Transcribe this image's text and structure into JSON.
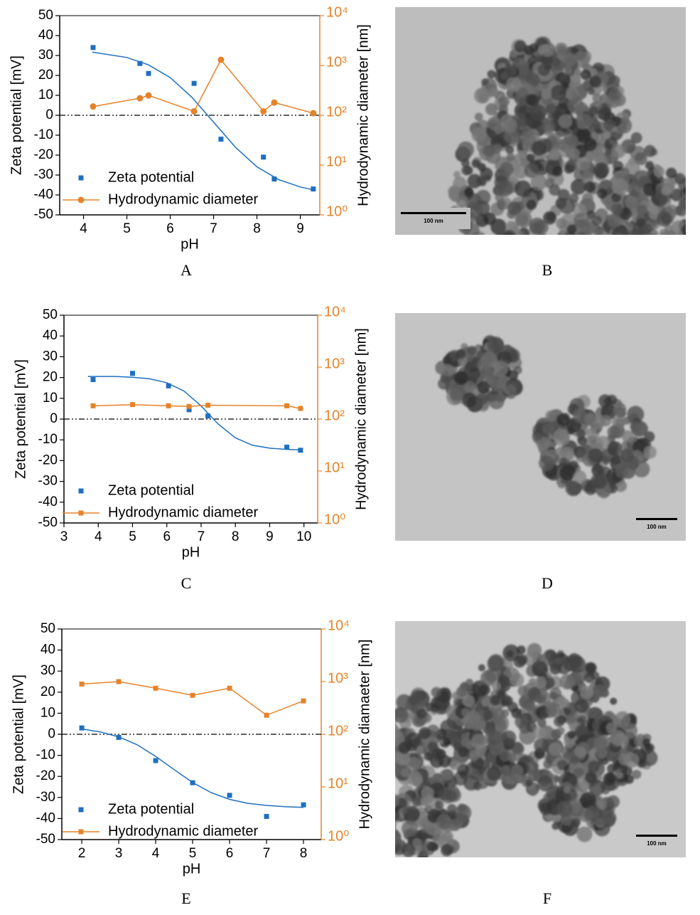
{
  "chart_data": [
    {
      "type": "combo",
      "panel": "A",
      "xlabel": "pH",
      "ylabel": "Zeta potential [mV]",
      "y2label": "Hydrodynamic diameter [nm]",
      "xlim": [
        3.45,
        9.45
      ],
      "xticks": [
        4,
        5,
        6,
        7,
        8,
        9
      ],
      "ylim": [
        -50,
        50
      ],
      "yticks": [
        -50,
        -40,
        -30,
        -20,
        -10,
        0,
        10,
        20,
        30,
        40,
        50
      ],
      "y2lim": [
        1,
        10000
      ],
      "y2log": true,
      "y2ticks": [
        {
          "value": 1,
          "label": "10⁰"
        },
        {
          "value": 10,
          "label": "10¹"
        },
        {
          "value": 100,
          "label": "10²"
        },
        {
          "value": 1000,
          "label": "10³"
        },
        {
          "value": 10000,
          "label": "10⁴"
        }
      ],
      "zero_line": 0,
      "series": [
        {
          "name": "Zeta potential",
          "color": "#1f6fbf",
          "style": "markers",
          "marker": "square",
          "x": [
            4.22,
            5.3,
            5.5,
            6.55,
            7.17,
            8.15,
            8.4,
            9.3
          ],
          "values": [
            34,
            26,
            21,
            16,
            -12,
            -21,
            -32,
            -37
          ]
        },
        {
          "color": "#1f6fbf",
          "style": "line",
          "x": [
            4.2,
            5,
            5.5,
            6,
            6.5,
            7,
            7.5,
            8,
            8.5,
            9,
            9.3
          ],
          "values": [
            31.7,
            29,
            25.3,
            18.9,
            9,
            -3.5,
            -16,
            -25.9,
            -32.3,
            -36,
            -37.4
          ]
        },
        {
          "name": "Hydrodynamic diameter",
          "color": "#e5832a",
          "style": "line-markers",
          "marker": "circle",
          "axis": "y2",
          "x": [
            4.22,
            5.3,
            5.5,
            6.55,
            7.17,
            8.15,
            8.4,
            9.3
          ],
          "values": [
            150,
            220,
            250,
            120,
            1300,
            120,
            180,
            110
          ]
        }
      ]
    },
    {
      "type": "combo",
      "panel": "C",
      "xlabel": "pH",
      "ylabel": "Zeta potential [mV]",
      "y2label": "Hydrodynamic diameter [nm]",
      "xlim": [
        3,
        10.4
      ],
      "xticks": [
        3,
        4,
        5,
        6,
        7,
        8,
        9,
        10
      ],
      "ylim": [
        -50,
        50
      ],
      "yticks": [
        -50,
        -40,
        -30,
        -20,
        -10,
        0,
        10,
        20,
        30,
        40,
        50
      ],
      "y2lim": [
        1,
        10000
      ],
      "y2log": true,
      "y2ticks": [
        {
          "value": 1,
          "label": "10⁰"
        },
        {
          "value": 10,
          "label": "10¹"
        },
        {
          "value": 100,
          "label": "10²"
        },
        {
          "value": 1000,
          "label": "10³"
        },
        {
          "value": 10000,
          "label": "10⁴"
        }
      ],
      "zero_line": 0,
      "series": [
        {
          "name": "Zeta potential",
          "color": "#1f6fbf",
          "style": "markers",
          "marker": "square",
          "x": [
            3.85,
            5,
            6.05,
            6.65,
            7.2,
            9.5,
            9.9
          ],
          "values": [
            19,
            22,
            16,
            4.5,
            1.5,
            -13.5,
            -15
          ]
        },
        {
          "color": "#1f6fbf",
          "style": "line",
          "x": [
            3.7,
            4.5,
            5,
            5.5,
            6,
            6.5,
            7,
            7.5,
            8,
            8.5,
            9,
            9.5,
            9.9
          ],
          "values": [
            20.5,
            20.5,
            20.1,
            19.4,
            17.5,
            13.5,
            6.3,
            -2.4,
            -9,
            -12.6,
            -14,
            -14.6,
            -14.8
          ]
        },
        {
          "name": "Hydrodynamic diameter",
          "color": "#e5832a",
          "style": "line-markers",
          "marker": "square",
          "axis": "y2",
          "x": [
            3.85,
            5,
            6.05,
            6.65,
            7.2,
            9.5,
            9.9
          ],
          "values": [
            180,
            190,
            180,
            175,
            185,
            180,
            160
          ]
        }
      ]
    },
    {
      "type": "combo",
      "panel": "E",
      "xlabel": "pH",
      "ylabel": "Zeta potential [mV]",
      "y2label": "Hydrodynamic diamaeter [nm]",
      "xlim": [
        1.46,
        8.48
      ],
      "xticks": [
        2,
        3,
        4,
        5,
        6,
        7,
        8
      ],
      "ylim": [
        -50,
        50
      ],
      "yticks": [
        -50,
        -40,
        -30,
        -20,
        -10,
        0,
        10,
        20,
        30,
        40,
        50
      ],
      "y2lim": [
        1,
        10000
      ],
      "y2log": true,
      "y2ticks": [
        {
          "value": 1,
          "label": "10⁰"
        },
        {
          "value": 10,
          "label": "10¹"
        },
        {
          "value": 100,
          "label": "10²"
        },
        {
          "value": 1000,
          "label": "10³"
        },
        {
          "value": 10000,
          "label": "10⁴"
        }
      ],
      "zero_line": 0,
      "series": [
        {
          "name": "Zeta potential",
          "color": "#1f6fbf",
          "style": "markers",
          "marker": "square",
          "x": [
            2,
            3,
            4,
            5,
            6,
            7,
            8
          ],
          "values": [
            3,
            -1.5,
            -12.5,
            -23,
            -29,
            -39,
            -33.5
          ]
        },
        {
          "color": "#1f6fbf",
          "style": "line",
          "x": [
            2,
            2.5,
            3,
            3.5,
            4,
            4.5,
            5,
            5.5,
            6,
            6.5,
            7,
            7.5,
            8
          ],
          "values": [
            2.5,
            1.1,
            -1.2,
            -5,
            -10.5,
            -16.8,
            -22.9,
            -27.7,
            -30.9,
            -32.8,
            -33.8,
            -34.4,
            -34.7
          ]
        },
        {
          "name": "Hydrodynamic diameter",
          "color": "#e5832a",
          "style": "line-markers",
          "marker": "square",
          "axis": "y2",
          "x": [
            2,
            3,
            4,
            5,
            6,
            7,
            8
          ],
          "values": [
            900,
            1000,
            750,
            550,
            750,
            230,
            430
          ]
        }
      ]
    }
  ],
  "images": [
    {
      "panel": "B",
      "scale_bar": "100 nm"
    },
    {
      "panel": "D",
      "scale_bar": "100 nm"
    },
    {
      "panel": "F",
      "scale_bar": "100 nm"
    }
  ]
}
